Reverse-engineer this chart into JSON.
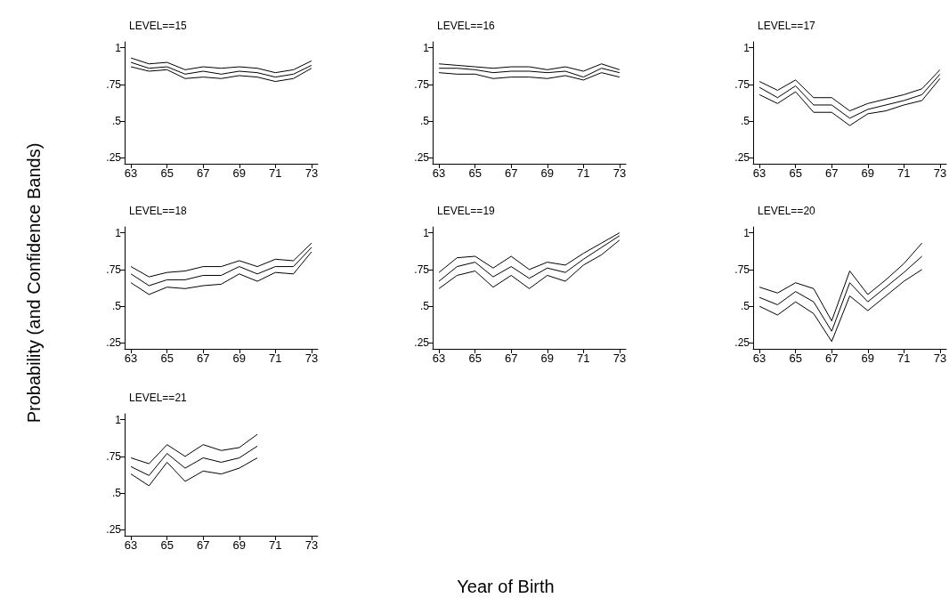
{
  "chart_data": [
    {
      "type": "line",
      "title": "LEVEL==15",
      "ylabel": "Probability (and Confidence Bands)",
      "x": [
        63,
        64,
        65,
        66,
        67,
        68,
        69,
        70,
        71,
        72,
        73
      ],
      "xlim": [
        62.65,
        73.35
      ],
      "xticks": [
        63,
        65,
        67,
        69,
        71,
        73
      ],
      "ylim": [
        0.21,
        1.04
      ],
      "yticks": [
        {
          "value": 0.25,
          "label": ".25"
        },
        {
          "value": 0.5,
          "label": ".5"
        },
        {
          "value": 0.75,
          "label": ".75"
        },
        {
          "value": 1,
          "label": "1"
        }
      ],
      "grid": false,
      "marker": "none",
      "series": [
        {
          "color": "#000000",
          "values": [
            0.93,
            0.89,
            0.9,
            0.85,
            0.87,
            0.86,
            0.87,
            0.86,
            0.83,
            0.85,
            0.91
          ]
        },
        {
          "color": "#000000",
          "values": [
            0.9,
            0.86,
            0.87,
            0.82,
            0.84,
            0.82,
            0.84,
            0.83,
            0.8,
            0.82,
            0.88
          ]
        },
        {
          "color": "#000000",
          "values": [
            0.87,
            0.84,
            0.85,
            0.79,
            0.8,
            0.79,
            0.81,
            0.8,
            0.77,
            0.79,
            0.86
          ]
        }
      ]
    },
    {
      "type": "line",
      "title": "LEVEL==16",
      "x": [
        63,
        64,
        65,
        66,
        67,
        68,
        69,
        70,
        71,
        72,
        73
      ],
      "xlim": [
        62.65,
        73.35
      ],
      "xticks": [
        63,
        65,
        67,
        69,
        71,
        73
      ],
      "ylim": [
        0.21,
        1.04
      ],
      "yticks": [
        {
          "value": 0.25,
          "label": ".25"
        },
        {
          "value": 0.5,
          "label": ".5"
        },
        {
          "value": 0.75,
          "label": ".75"
        },
        {
          "value": 1,
          "label": "1"
        }
      ],
      "grid": false,
      "marker": "none",
      "series": [
        {
          "color": "#000000",
          "values": [
            0.89,
            0.88,
            0.87,
            0.86,
            0.87,
            0.87,
            0.85,
            0.87,
            0.84,
            0.89,
            0.85
          ]
        },
        {
          "color": "#000000",
          "values": [
            0.86,
            0.86,
            0.85,
            0.83,
            0.84,
            0.84,
            0.83,
            0.84,
            0.8,
            0.86,
            0.83
          ]
        },
        {
          "color": "#000000",
          "values": [
            0.83,
            0.82,
            0.82,
            0.79,
            0.8,
            0.8,
            0.79,
            0.81,
            0.78,
            0.83,
            0.8
          ]
        }
      ]
    },
    {
      "type": "line",
      "title": "LEVEL==17",
      "x": [
        63,
        64,
        65,
        66,
        67,
        68,
        69,
        70,
        71,
        72,
        73
      ],
      "xlim": [
        62.65,
        73.35
      ],
      "xticks": [
        63,
        65,
        67,
        69,
        71,
        73
      ],
      "ylim": [
        0.21,
        1.04
      ],
      "yticks": [
        {
          "value": 0.25,
          "label": ".25"
        },
        {
          "value": 0.5,
          "label": ".5"
        },
        {
          "value": 0.75,
          "label": ".75"
        },
        {
          "value": 1,
          "label": "1"
        }
      ],
      "grid": false,
      "marker": "none",
      "series": [
        {
          "color": "#000000",
          "values": [
            0.77,
            0.71,
            0.78,
            0.66,
            0.66,
            0.57,
            0.62,
            0.65,
            0.68,
            0.72,
            0.85
          ]
        },
        {
          "color": "#000000",
          "values": [
            0.73,
            0.66,
            0.74,
            0.61,
            0.61,
            0.52,
            0.58,
            0.61,
            0.64,
            0.68,
            0.82
          ]
        },
        {
          "color": "#000000",
          "values": [
            0.68,
            0.62,
            0.7,
            0.56,
            0.56,
            0.47,
            0.55,
            0.57,
            0.61,
            0.64,
            0.79
          ]
        }
      ]
    },
    {
      "type": "line",
      "title": "LEVEL==18",
      "x": [
        63,
        64,
        65,
        66,
        67,
        68,
        69,
        70,
        71,
        72,
        73
      ],
      "xlim": [
        62.65,
        73.35
      ],
      "xticks": [
        63,
        65,
        67,
        69,
        71,
        73
      ],
      "ylim": [
        0.21,
        1.04
      ],
      "yticks": [
        {
          "value": 0.25,
          "label": ".25"
        },
        {
          "value": 0.5,
          "label": ".5"
        },
        {
          "value": 0.75,
          "label": ".75"
        },
        {
          "value": 1,
          "label": "1"
        }
      ],
      "grid": false,
      "marker": "none",
      "series": [
        {
          "color": "#000000",
          "values": [
            0.77,
            0.7,
            0.73,
            0.74,
            0.77,
            0.77,
            0.81,
            0.77,
            0.82,
            0.81,
            0.93
          ]
        },
        {
          "color": "#000000",
          "values": [
            0.72,
            0.64,
            0.68,
            0.68,
            0.71,
            0.71,
            0.77,
            0.72,
            0.77,
            0.77,
            0.9
          ]
        },
        {
          "color": "#000000",
          "values": [
            0.66,
            0.58,
            0.63,
            0.62,
            0.64,
            0.65,
            0.72,
            0.67,
            0.73,
            0.72,
            0.87
          ]
        }
      ]
    },
    {
      "type": "line",
      "title": "LEVEL==19",
      "xlabel": "Year of Birth",
      "x": [
        63,
        64,
        65,
        66,
        67,
        68,
        69,
        70,
        71,
        72,
        73
      ],
      "xlim": [
        62.65,
        73.35
      ],
      "xticks": [
        63,
        65,
        67,
        69,
        71,
        73
      ],
      "ylim": [
        0.21,
        1.04
      ],
      "yticks": [
        {
          "value": 0.25,
          "label": ".25"
        },
        {
          "value": 0.5,
          "label": ".5"
        },
        {
          "value": 0.75,
          "label": ".75"
        },
        {
          "value": 1,
          "label": "1"
        }
      ],
      "grid": false,
      "marker": "none",
      "series": [
        {
          "color": "#000000",
          "values": [
            0.73,
            0.83,
            0.84,
            0.76,
            0.84,
            0.75,
            0.8,
            0.78,
            0.86,
            0.93,
            1.0
          ]
        },
        {
          "color": "#000000",
          "values": [
            0.67,
            0.77,
            0.8,
            0.7,
            0.77,
            0.69,
            0.76,
            0.73,
            0.82,
            0.9,
            0.98
          ]
        },
        {
          "color": "#000000",
          "values": [
            0.62,
            0.71,
            0.74,
            0.63,
            0.71,
            0.62,
            0.71,
            0.67,
            0.78,
            0.85,
            0.95
          ]
        }
      ]
    },
    {
      "type": "line",
      "title": "LEVEL==20",
      "x": [
        63,
        64,
        65,
        66,
        67,
        68,
        69,
        70,
        71,
        72
      ],
      "xlim": [
        62.65,
        73.35
      ],
      "xticks": [
        63,
        65,
        67,
        69,
        71,
        73
      ],
      "ylim": [
        0.21,
        1.04
      ],
      "yticks": [
        {
          "value": 0.25,
          "label": ".25"
        },
        {
          "value": 0.5,
          "label": ".5"
        },
        {
          "value": 0.75,
          "label": ".75"
        },
        {
          "value": 1,
          "label": "1"
        }
      ],
      "grid": false,
      "marker": "none",
      "series": [
        {
          "color": "#000000",
          "values": [
            0.63,
            0.59,
            0.66,
            0.62,
            0.4,
            0.74,
            0.58,
            0.68,
            0.79,
            0.93
          ]
        },
        {
          "color": "#000000",
          "values": [
            0.56,
            0.51,
            0.6,
            0.53,
            0.33,
            0.66,
            0.53,
            0.63,
            0.73,
            0.84
          ]
        },
        {
          "color": "#000000",
          "values": [
            0.5,
            0.44,
            0.53,
            0.45,
            0.26,
            0.57,
            0.47,
            0.57,
            0.67,
            0.75
          ]
        }
      ]
    },
    {
      "type": "line",
      "title": "LEVEL==21",
      "x": [
        63,
        64,
        65,
        66,
        67,
        68,
        69,
        70
      ],
      "xlim": [
        62.65,
        73.35
      ],
      "xticks": [
        63,
        65,
        67,
        69,
        71,
        73
      ],
      "ylim": [
        0.21,
        1.04
      ],
      "yticks": [
        {
          "value": 0.25,
          "label": ".25"
        },
        {
          "value": 0.5,
          "label": ".5"
        },
        {
          "value": 0.75,
          "label": ".75"
        },
        {
          "value": 1,
          "label": "1"
        }
      ],
      "grid": false,
      "marker": "none",
      "series": [
        {
          "color": "#000000",
          "values": [
            0.74,
            0.7,
            0.83,
            0.75,
            0.83,
            0.79,
            0.81,
            0.9
          ]
        },
        {
          "color": "#000000",
          "values": [
            0.68,
            0.62,
            0.77,
            0.67,
            0.74,
            0.71,
            0.74,
            0.82
          ]
        },
        {
          "color": "#000000",
          "values": [
            0.63,
            0.55,
            0.71,
            0.58,
            0.65,
            0.63,
            0.67,
            0.74
          ]
        }
      ]
    }
  ]
}
